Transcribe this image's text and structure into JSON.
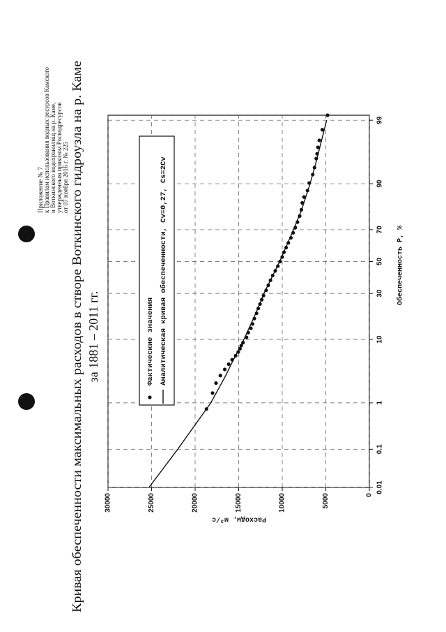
{
  "header": {
    "lines": [
      "Приложение № 7",
      "к Правилам использования водных ресурсов Камского",
      "и Воткинского водохранилищ на р. Каме,",
      "утвержденным приказом Росводресурсов",
      "от 07 ноября 2016 г. № 225"
    ]
  },
  "chart_data": {
    "type": "line",
    "title": "Кривая обеспеченности максимальных расходов в створе Воткинского гидроузла на р. Каме",
    "subtitle": "за 1881 – 2011 гг.",
    "x_label": "Обеспеченность Р, %",
    "y_label": "Расходы, м³/с",
    "x_scale": "probability",
    "xlim": [
      0.01,
      99.2
    ],
    "xticks": [
      0.01,
      0.1,
      1,
      10,
      30,
      50,
      70,
      90,
      99
    ],
    "ylim": [
      0,
      30000
    ],
    "yticks": [
      0,
      5000,
      10000,
      15000,
      20000,
      25000,
      30000
    ],
    "grid": true,
    "legend_position": "upper left",
    "series": [
      {
        "name": "Фактические значения",
        "style": "markers",
        "color": "#111111",
        "x": [
          0.76,
          1.52,
          2.27,
          3.03,
          3.79,
          4.55,
          5.3,
          6.06,
          6.82,
          7.58,
          8.33,
          9.09,
          10.6,
          12.1,
          13.6,
          15.2,
          17.4,
          19.7,
          22.0,
          24.2,
          26.5,
          28.8,
          31.8,
          34.8,
          37.9,
          40.9,
          43.9,
          47.0,
          50.0,
          53.0,
          56.1,
          59.1,
          62.1,
          65.2,
          68.2,
          71.2,
          74.2,
          77.3,
          80.3,
          83.3,
          85.6,
          87.9,
          90.2,
          92.4,
          93.9,
          95.5,
          96.2,
          97.0,
          97.7,
          98.5,
          99.2
        ],
        "values": [
          18700,
          18000,
          17600,
          17100,
          16600,
          16150,
          15750,
          15350,
          15050,
          14850,
          14700,
          14500,
          14100,
          13900,
          13600,
          13400,
          13200,
          12950,
          12750,
          12550,
          12350,
          12150,
          11850,
          11600,
          11350,
          11100,
          10800,
          10500,
          10250,
          10000,
          9800,
          9550,
          9300,
          9000,
          8750,
          8500,
          8250,
          8000,
          7800,
          7700,
          7500,
          7100,
          6900,
          6500,
          6300,
          6100,
          6000,
          5900,
          5750,
          5400,
          4800
        ]
      },
      {
        "name": "Аналитическая кривая обеспеченности, Cv=0,27, Cs=2Cv",
        "style": "line",
        "color": "#111111",
        "x": [
          0.01,
          0.1,
          1,
          3,
          5,
          10,
          20,
          30,
          50,
          70,
          80,
          90,
          95,
          99
        ],
        "values": [
          25300,
          22000,
          18200,
          16500,
          15700,
          14400,
          13000,
          12100,
          10300,
          8700,
          7800,
          6800,
          6100,
          4900
        ]
      }
    ]
  }
}
